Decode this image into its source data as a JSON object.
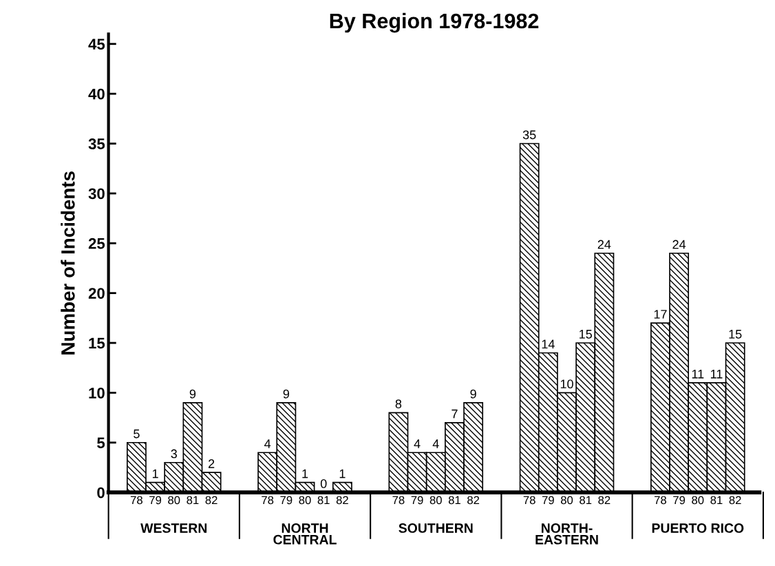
{
  "chart_data": {
    "type": "bar",
    "title": "By Region 1978-1982",
    "ylabel": "Number of Incidents",
    "categories": [
      null,
      "78",
      "79",
      "80",
      "81",
      "82",
      null,
      null,
      "78",
      "79",
      "80",
      "81",
      "82",
      null,
      null,
      "78",
      "79",
      "80",
      "81",
      "82",
      null,
      null,
      "78",
      "79",
      "80",
      "81",
      "82",
      null,
      null,
      "78",
      "79",
      "80",
      "81",
      "82"
    ],
    "values": [
      null,
      5,
      1,
      3,
      9,
      2,
      null,
      null,
      4,
      9,
      1,
      0,
      1,
      null,
      null,
      8,
      4,
      4,
      7,
      9,
      null,
      null,
      35,
      14,
      10,
      15,
      24,
      null,
      null,
      17,
      24,
      11,
      11,
      15
    ],
    "color": "#000000",
    "data_labels": true,
    "annotations": [
      "WESTERN",
      "NORTH\nCENTRAL",
      "SOUTHERN",
      "NORTH-\nEASTERN",
      "PUERTO RICO"
    ],
    "ylim": [
      0,
      46
    ],
    "yticks": [
      0,
      5,
      10,
      15,
      20,
      25,
      30,
      35,
      40,
      45
    ],
    "grid": false,
    "legend": false
  }
}
